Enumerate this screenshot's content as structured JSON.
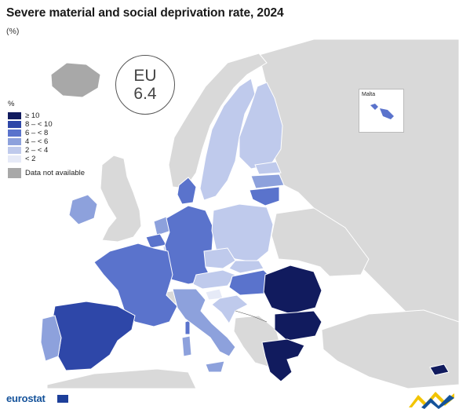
{
  "header": {
    "title": "Severe material and social deprivation rate, 2024",
    "subtitle": "(%)"
  },
  "eu_badge": {
    "label": "EU",
    "value": "6.4"
  },
  "legend": {
    "unit": "%",
    "classes": [
      {
        "label": "≥ 10",
        "color": "#111b5e"
      },
      {
        "label": "8 – < 10",
        "color": "#2e47a8"
      },
      {
        "label": "6 – < 8",
        "color": "#5a73cc"
      },
      {
        "label": "4 – < 6",
        "color": "#8da1dc"
      },
      {
        "label": "2 – < 4",
        "color": "#bfcaec"
      },
      {
        "label": "< 2",
        "color": "#e6eaf7"
      }
    ],
    "not_available": {
      "label": "Data not available",
      "color": "#a8a8a8"
    }
  },
  "inset": {
    "label": "Malta"
  },
  "colors": {
    "non_eu": "#d9d9d9",
    "sea": "#ffffff",
    "border": "#ffffff"
  },
  "footer": {
    "logo": "eurostat"
  }
}
